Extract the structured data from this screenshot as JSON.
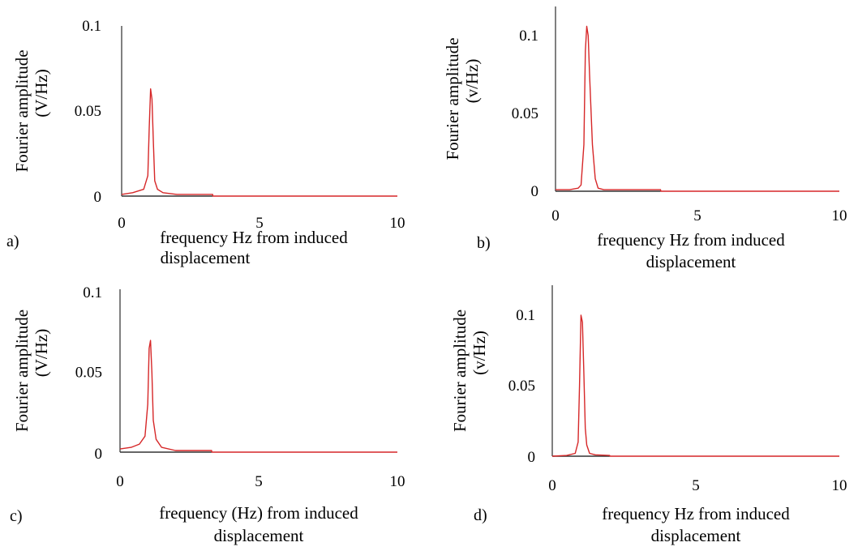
{
  "chart_data": [
    {
      "panel": "a)",
      "type": "line",
      "title": "",
      "xlabel": "frequency Hz from induced displacement",
      "ylabel": "Fourier amplitude (V/Hz)",
      "xlim": [
        0,
        10
      ],
      "ylim": [
        0,
        0.1
      ],
      "xticks": [
        "0",
        "5",
        "10"
      ],
      "yticks": [
        "0",
        "0.05",
        "0.1"
      ],
      "grid": false,
      "legend": "none",
      "series_color": "#d62728",
      "series": [
        {
          "x": [
            0,
            0.4,
            0.8,
            0.95,
            1.0,
            1.05,
            1.1,
            1.15,
            1.2,
            1.3,
            1.5,
            2.0,
            3.3,
            3.31,
            10
          ],
          "y": [
            0.001,
            0.002,
            0.004,
            0.012,
            0.04,
            0.063,
            0.057,
            0.032,
            0.009,
            0.004,
            0.002,
            0.001,
            0.001,
            0,
            0
          ]
        }
      ],
      "baseline": {
        "x": [
          0,
          3.3
        ],
        "color": "#333333"
      }
    },
    {
      "panel": "b)",
      "type": "line",
      "title": "",
      "xlabel": "frequency Hz from induced displacement",
      "ylabel": "Fourier amplitude (v/Hz)",
      "xlim": [
        0,
        10
      ],
      "ylim": [
        0,
        0.1
      ],
      "xticks": [
        "0",
        "5",
        "10"
      ],
      "yticks": [
        "0",
        "0.05",
        "0.1"
      ],
      "grid": false,
      "legend": "none",
      "series_color": "#d62728",
      "series": [
        {
          "x": [
            0,
            0.5,
            0.8,
            0.9,
            1.0,
            1.05,
            1.1,
            1.15,
            1.2,
            1.3,
            1.4,
            1.5,
            1.7,
            3.7,
            3.71,
            10
          ],
          "y": [
            0.001,
            0.001,
            0.002,
            0.004,
            0.03,
            0.09,
            0.106,
            0.1,
            0.075,
            0.03,
            0.008,
            0.002,
            0.001,
            0.001,
            0,
            0
          ]
        }
      ],
      "baseline": {
        "x": [
          0,
          3.7
        ],
        "color": "#333333"
      }
    },
    {
      "panel": "c)",
      "type": "line",
      "title": "",
      "xlabel": "frequency (Hz) from induced displacement",
      "ylabel": "Fourier amplitude (V/Hz)",
      "xlim": [
        0,
        10
      ],
      "ylim": [
        0,
        0.1
      ],
      "xticks": [
        "0",
        "5",
        "10"
      ],
      "yticks": [
        "0",
        "0.05",
        "0.1"
      ],
      "grid": false,
      "legend": "none",
      "series_color": "#d62728",
      "series": [
        {
          "x": [
            0,
            0.4,
            0.7,
            0.9,
            1.0,
            1.05,
            1.1,
            1.15,
            1.2,
            1.3,
            1.5,
            2.0,
            3.3,
            3.31,
            10
          ],
          "y": [
            0.002,
            0.003,
            0.005,
            0.01,
            0.03,
            0.065,
            0.07,
            0.05,
            0.02,
            0.008,
            0.003,
            0.001,
            0.001,
            0,
            0
          ]
        }
      ],
      "baseline": {
        "x": [
          0,
          3.3
        ],
        "color": "#333333"
      }
    },
    {
      "panel": "d)",
      "type": "line",
      "title": "",
      "xlabel": "frequency Hz from induced displacement",
      "ylabel": "Fourier amplitude (v/Hz)",
      "xlim": [
        0,
        10
      ],
      "ylim": [
        0,
        0.1
      ],
      "xticks": [
        "0",
        "5",
        "10"
      ],
      "yticks": [
        "0",
        "0.05",
        "0.1"
      ],
      "grid": false,
      "legend": "none",
      "series_color": "#d62728",
      "series": [
        {
          "x": [
            0,
            0.5,
            0.8,
            0.9,
            0.95,
            1.0,
            1.05,
            1.1,
            1.15,
            1.2,
            1.3,
            1.5,
            2.0,
            2.01,
            10
          ],
          "y": [
            0,
            0.0005,
            0.002,
            0.01,
            0.05,
            0.1,
            0.095,
            0.06,
            0.02,
            0.008,
            0.002,
            0.001,
            0.0005,
            0,
            0
          ]
        }
      ],
      "baseline": {
        "x": [
          0,
          2.0
        ],
        "color": "#333333"
      }
    }
  ]
}
